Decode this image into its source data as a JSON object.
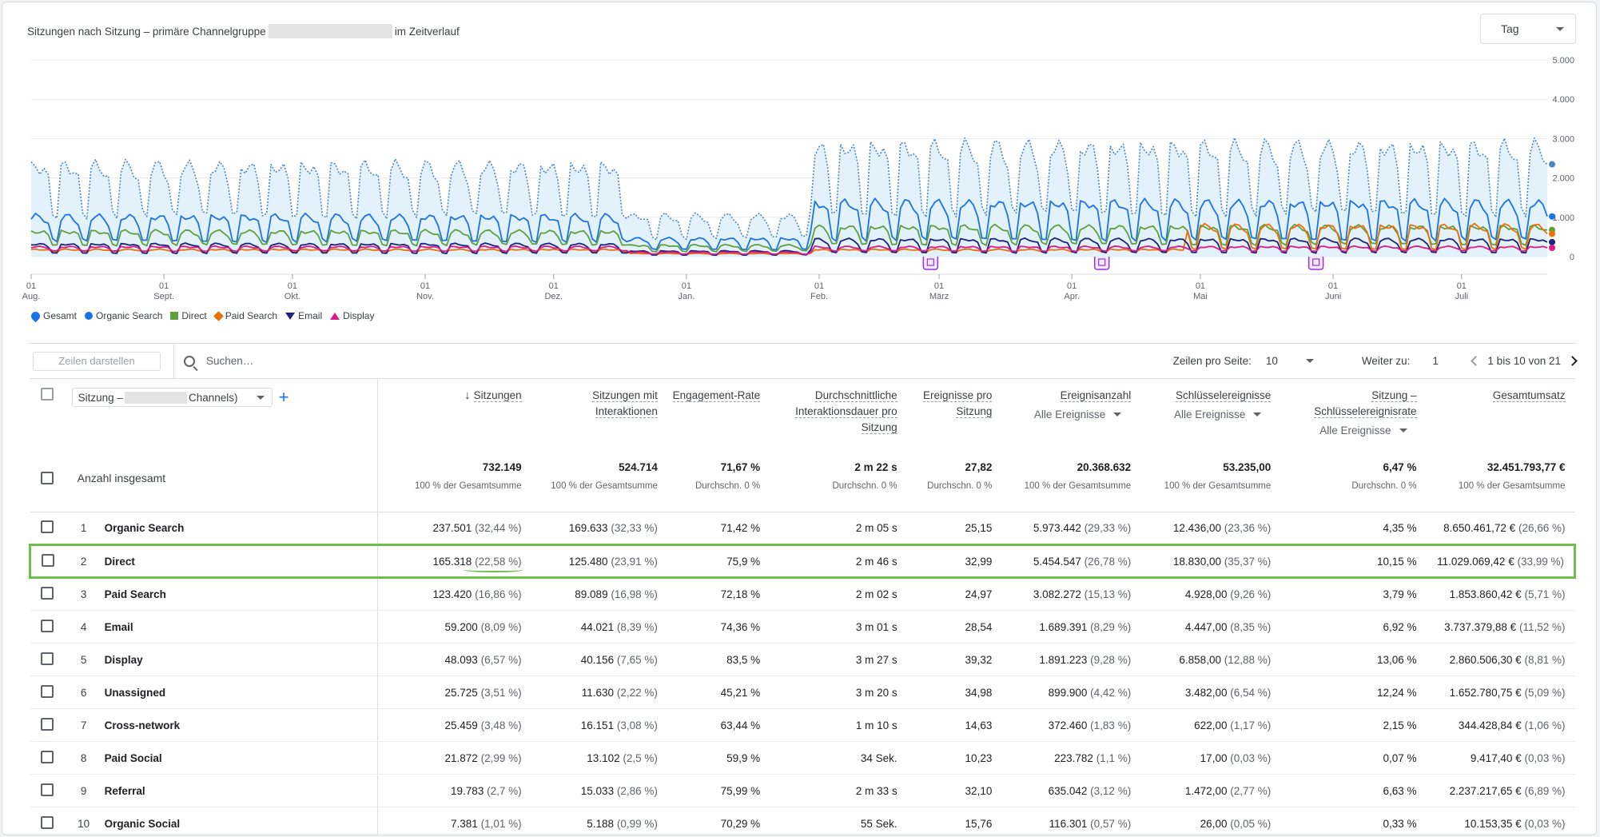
{
  "chart": {
    "title_before": "Sitzungen nach Sitzung – primäre Channelgruppe",
    "title_after": "im Zeitverlauf",
    "granularity": "Tag"
  },
  "legend": [
    {
      "label": "Gesamt",
      "color": "#1a73e8",
      "marker": "drop"
    },
    {
      "label": "Organic Search",
      "color": "#1a73e8",
      "marker": "circle"
    },
    {
      "label": "Direct",
      "color": "#5ea13b",
      "marker": "square"
    },
    {
      "label": "Paid Search",
      "color": "#e8710a",
      "marker": "diamond"
    },
    {
      "label": "Email",
      "color": "#1a237e",
      "marker": "tri-down"
    },
    {
      "label": "Display",
      "color": "#d81b87",
      "marker": "tri-up"
    }
  ],
  "chart_data": {
    "type": "line",
    "x_tick_labels": [
      [
        "01",
        "Aug."
      ],
      [
        "01",
        "Sept."
      ],
      [
        "01",
        "Okt."
      ],
      [
        "01",
        "Nov."
      ],
      [
        "01",
        "Dez."
      ],
      [
        "01",
        "Jan."
      ],
      [
        "01",
        "Feb."
      ],
      [
        "01",
        "März"
      ],
      [
        "01",
        "Apr."
      ],
      [
        "01",
        "Mai"
      ],
      [
        "01",
        "Juni"
      ],
      [
        "01",
        "Juli"
      ]
    ],
    "x_tick_day_offsets": [
      0,
      31,
      61,
      92,
      122,
      153,
      184,
      212,
      243,
      273,
      304,
      334
    ],
    "days": 355,
    "y_ticks": [
      0,
      1000,
      2000,
      3000,
      4000,
      5000
    ],
    "y_tick_labels": [
      "0",
      "1.000",
      "2.000",
      "3.000",
      "4.000",
      "5.000"
    ],
    "ylim": [
      0,
      5000
    ],
    "grid": true,
    "legend_position": "bottom-left",
    "annotation_day_offsets": [
      210,
      250,
      300
    ],
    "series": [
      {
        "name": "Gesamt",
        "color": "#4a86c5",
        "style": "dotted",
        "fill": "#e3f1fb",
        "base": 900,
        "amp": 1400,
        "boost_from": 180,
        "boost": 500
      },
      {
        "name": "Organic Search",
        "color": "#1a73e8",
        "style": "solid",
        "base": 320,
        "amp": 700,
        "boost_from": 180,
        "boost": 350
      },
      {
        "name": "Direct",
        "color": "#5ea13b",
        "style": "solid",
        "base": 260,
        "amp": 380,
        "boost_from": 180,
        "boost": 120
      },
      {
        "name": "Paid Search",
        "color": "#e8710a",
        "style": "solid",
        "base": 120,
        "amp": 60,
        "boost_from": 270,
        "boost": 600
      },
      {
        "name": "Email",
        "color": "#1a237e",
        "style": "solid",
        "base": 60,
        "amp": 260,
        "boost_from": 180,
        "boost": 120
      },
      {
        "name": "Display",
        "color": "#d81b87",
        "style": "solid",
        "base": 130,
        "amp": 120,
        "boost_from": 999,
        "boost": 0
      }
    ]
  },
  "toolbar": {
    "rows_button": "Zeilen darstellen",
    "search_placeholder": "Suchen…",
    "rows_per_page_label": "Zeilen pro Seite:",
    "rows_per_page": "10",
    "goto_label": "Weiter zu:",
    "goto_value": "1",
    "range": "1 bis 10 von 21"
  },
  "table": {
    "dimension_prefix": "Sitzung –",
    "dimension_suffix": "Channels)",
    "columns": [
      {
        "label": "Sitzungen",
        "sorted": true,
        "sub": ""
      },
      {
        "label": "Sitzungen mit Interaktionen",
        "sub": ""
      },
      {
        "label": "Engagement-Rate",
        "sub": ""
      },
      {
        "label": "Durchschnittliche Interaktionsdauer pro Sitzung",
        "sub": ""
      },
      {
        "label": "Ereignisse pro Sitzung",
        "sub": ""
      },
      {
        "label": "Ereignisanzahl",
        "sub": "Alle Ereignisse"
      },
      {
        "label": "Schlüsselereignisse",
        "sub": "Alle Ereignisse"
      },
      {
        "label": "Sitzung – Schlüsselereignisrate",
        "sub": "Alle Ereignisse"
      },
      {
        "label": "Gesamtumsatz",
        "sub": ""
      }
    ],
    "totals_label": "Anzahl insgesamt",
    "totals": [
      {
        "value": "732.149",
        "note": "100 % der Gesamtsumme"
      },
      {
        "value": "524.714",
        "note": "100 % der Gesamtsumme"
      },
      {
        "value": "71,67 %",
        "note": "Durchschn. 0 %"
      },
      {
        "value": "2 m 22 s",
        "note": "Durchschn. 0 %"
      },
      {
        "value": "27,82",
        "note": "Durchschn. 0 %"
      },
      {
        "value": "20.368.632",
        "note": "100 % der Gesamtsumme"
      },
      {
        "value": "53.235,00",
        "note": "100 % der Gesamtsumme"
      },
      {
        "value": "6,47 %",
        "note": "Durchschn. 0 %"
      },
      {
        "value": "32.451.793,77 €",
        "note": "100 % der Gesamtsumme"
      }
    ],
    "rows": [
      {
        "idx": "1",
        "name": "Organic Search",
        "cells": [
          [
            "237.501",
            "(32,44 %)"
          ],
          [
            "169.633",
            "(32,33 %)"
          ],
          [
            "71,42 %",
            ""
          ],
          [
            "2 m 05 s",
            ""
          ],
          [
            "25,15",
            ""
          ],
          [
            "5.973.442",
            "(29,33 %)"
          ],
          [
            "12.436,00",
            "(23,36 %)"
          ],
          [
            "4,35 %",
            ""
          ],
          [
            "8.650.461,72 €",
            "(26,66 %)"
          ]
        ]
      },
      {
        "idx": "2",
        "name": "Direct",
        "highlight": true,
        "cells": [
          [
            "165.318",
            "(22,58 %)"
          ],
          [
            "125.480",
            "(23,91 %)"
          ],
          [
            "75,9 %",
            ""
          ],
          [
            "2 m 46 s",
            ""
          ],
          [
            "32,99",
            ""
          ],
          [
            "5.454.547",
            "(26,78 %)"
          ],
          [
            "18.830,00",
            "(35,37 %)"
          ],
          [
            "10,15 %",
            ""
          ],
          [
            "11.029.069,42 €",
            "(33,99 %)"
          ]
        ]
      },
      {
        "idx": "3",
        "name": "Paid Search",
        "cells": [
          [
            "123.420",
            "(16,86 %)"
          ],
          [
            "89.089",
            "(16,98 %)"
          ],
          [
            "72,18 %",
            ""
          ],
          [
            "2 m 02 s",
            ""
          ],
          [
            "24,97",
            ""
          ],
          [
            "3.082.272",
            "(15,13 %)"
          ],
          [
            "4.928,00",
            "(9,26 %)"
          ],
          [
            "3,79 %",
            ""
          ],
          [
            "1.853.860,42 €",
            "(5,71 %)"
          ]
        ]
      },
      {
        "idx": "4",
        "name": "Email",
        "cells": [
          [
            "59.200",
            "(8,09 %)"
          ],
          [
            "44.021",
            "(8,39 %)"
          ],
          [
            "74,36 %",
            ""
          ],
          [
            "3 m 01 s",
            ""
          ],
          [
            "28,54",
            ""
          ],
          [
            "1.689.391",
            "(8,29 %)"
          ],
          [
            "4.447,00",
            "(8,35 %)"
          ],
          [
            "6,92 %",
            ""
          ],
          [
            "3.737.379,88 €",
            "(11,52 %)"
          ]
        ]
      },
      {
        "idx": "5",
        "name": "Display",
        "cells": [
          [
            "48.093",
            "(6,57 %)"
          ],
          [
            "40.156",
            "(7,65 %)"
          ],
          [
            "83,5 %",
            ""
          ],
          [
            "3 m 27 s",
            ""
          ],
          [
            "39,32",
            ""
          ],
          [
            "1.891.223",
            "(9,28 %)"
          ],
          [
            "6.858,00",
            "(12,88 %)"
          ],
          [
            "13,06 %",
            ""
          ],
          [
            "2.860.506,30 €",
            "(8,81 %)"
          ]
        ]
      },
      {
        "idx": "6",
        "name": "Unassigned",
        "cells": [
          [
            "25.725",
            "(3,51 %)"
          ],
          [
            "11.630",
            "(2,22 %)"
          ],
          [
            "45,21 %",
            ""
          ],
          [
            "3 m 20 s",
            ""
          ],
          [
            "34,98",
            ""
          ],
          [
            "899.900",
            "(4,42 %)"
          ],
          [
            "3.482,00",
            "(6,54 %)"
          ],
          [
            "12,24 %",
            ""
          ],
          [
            "1.652.780,75 €",
            "(5,09 %)"
          ]
        ]
      },
      {
        "idx": "7",
        "name": "Cross-network",
        "cells": [
          [
            "25.459",
            "(3,48 %)"
          ],
          [
            "16.151",
            "(3,08 %)"
          ],
          [
            "63,44 %",
            ""
          ],
          [
            "1 m 10 s",
            ""
          ],
          [
            "14,63",
            ""
          ],
          [
            "372.460",
            "(1,83 %)"
          ],
          [
            "622,00",
            "(1,17 %)"
          ],
          [
            "2,15 %",
            ""
          ],
          [
            "344.428,84 €",
            "(1,06 %)"
          ]
        ]
      },
      {
        "idx": "8",
        "name": "Paid Social",
        "cells": [
          [
            "21.872",
            "(2,99 %)"
          ],
          [
            "13.102",
            "(2,5 %)"
          ],
          [
            "59,9 %",
            ""
          ],
          [
            "34 Sek.",
            ""
          ],
          [
            "10,23",
            ""
          ],
          [
            "223.782",
            "(1,1 %)"
          ],
          [
            "17,00",
            "(0,03 %)"
          ],
          [
            "0,07 %",
            ""
          ],
          [
            "9.417,40 €",
            "(0,03 %)"
          ]
        ]
      },
      {
        "idx": "9",
        "name": "Referral",
        "cells": [
          [
            "19.783",
            "(2,7 %)"
          ],
          [
            "15.033",
            "(2,86 %)"
          ],
          [
            "75,99 %",
            ""
          ],
          [
            "2 m 33 s",
            ""
          ],
          [
            "32,10",
            ""
          ],
          [
            "635.042",
            "(3,12 %)"
          ],
          [
            "1.472,00",
            "(2,77 %)"
          ],
          [
            "6,63 %",
            ""
          ],
          [
            "2.237.217,65 €",
            "(6,89 %)"
          ]
        ]
      },
      {
        "idx": "10",
        "name": "Organic Social",
        "cells": [
          [
            "7.381",
            "(1,01 %)"
          ],
          [
            "5.188",
            "(0,99 %)"
          ],
          [
            "70,29 %",
            ""
          ],
          [
            "55 Sek.",
            ""
          ],
          [
            "15,76",
            ""
          ],
          [
            "116.301",
            "(0,57 %)"
          ],
          [
            "26,00",
            "(0,05 %)"
          ],
          [
            "0,33 %",
            ""
          ],
          [
            "10.153,35 €",
            "(0,03 %)"
          ]
        ]
      }
    ]
  }
}
